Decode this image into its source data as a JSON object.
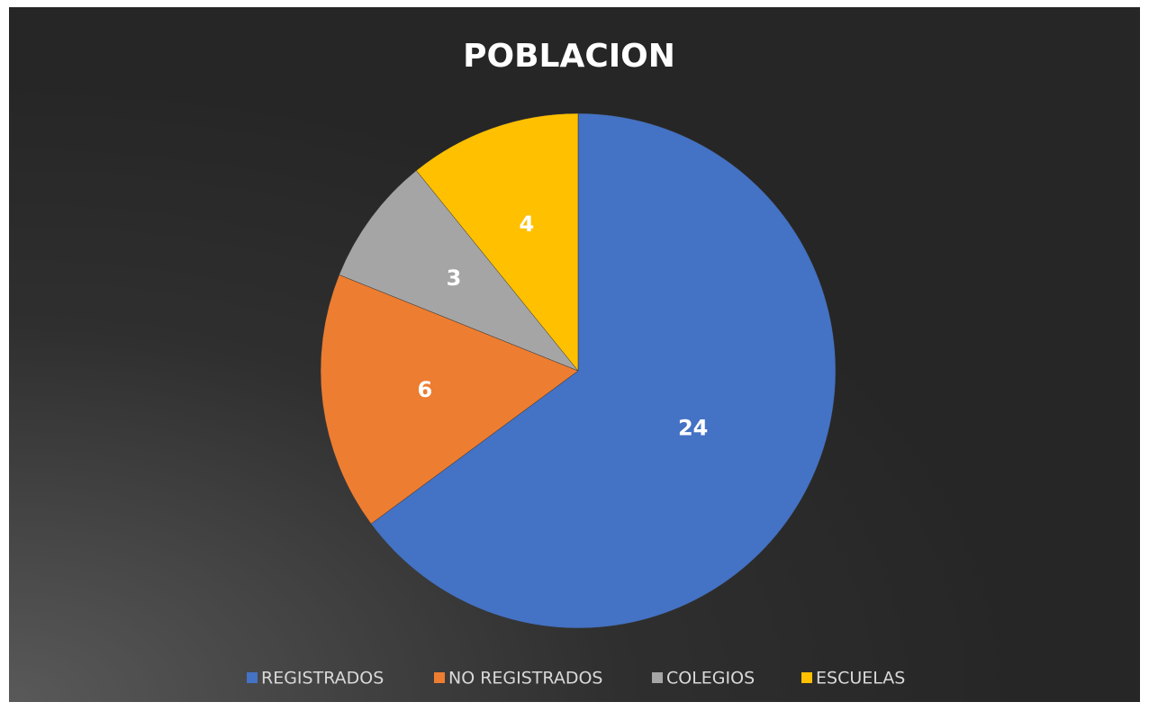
{
  "chart_data": {
    "type": "pie",
    "title": "POBLACION",
    "categories": [
      "REGISTRADOS",
      "NO REGISTRADOS",
      "COLEGIOS",
      "ESCUELAS"
    ],
    "values": [
      24,
      6,
      3,
      4
    ],
    "colors": [
      "#4472c4",
      "#ed7d31",
      "#a5a5a5",
      "#ffc000"
    ],
    "legend": "bottom"
  }
}
